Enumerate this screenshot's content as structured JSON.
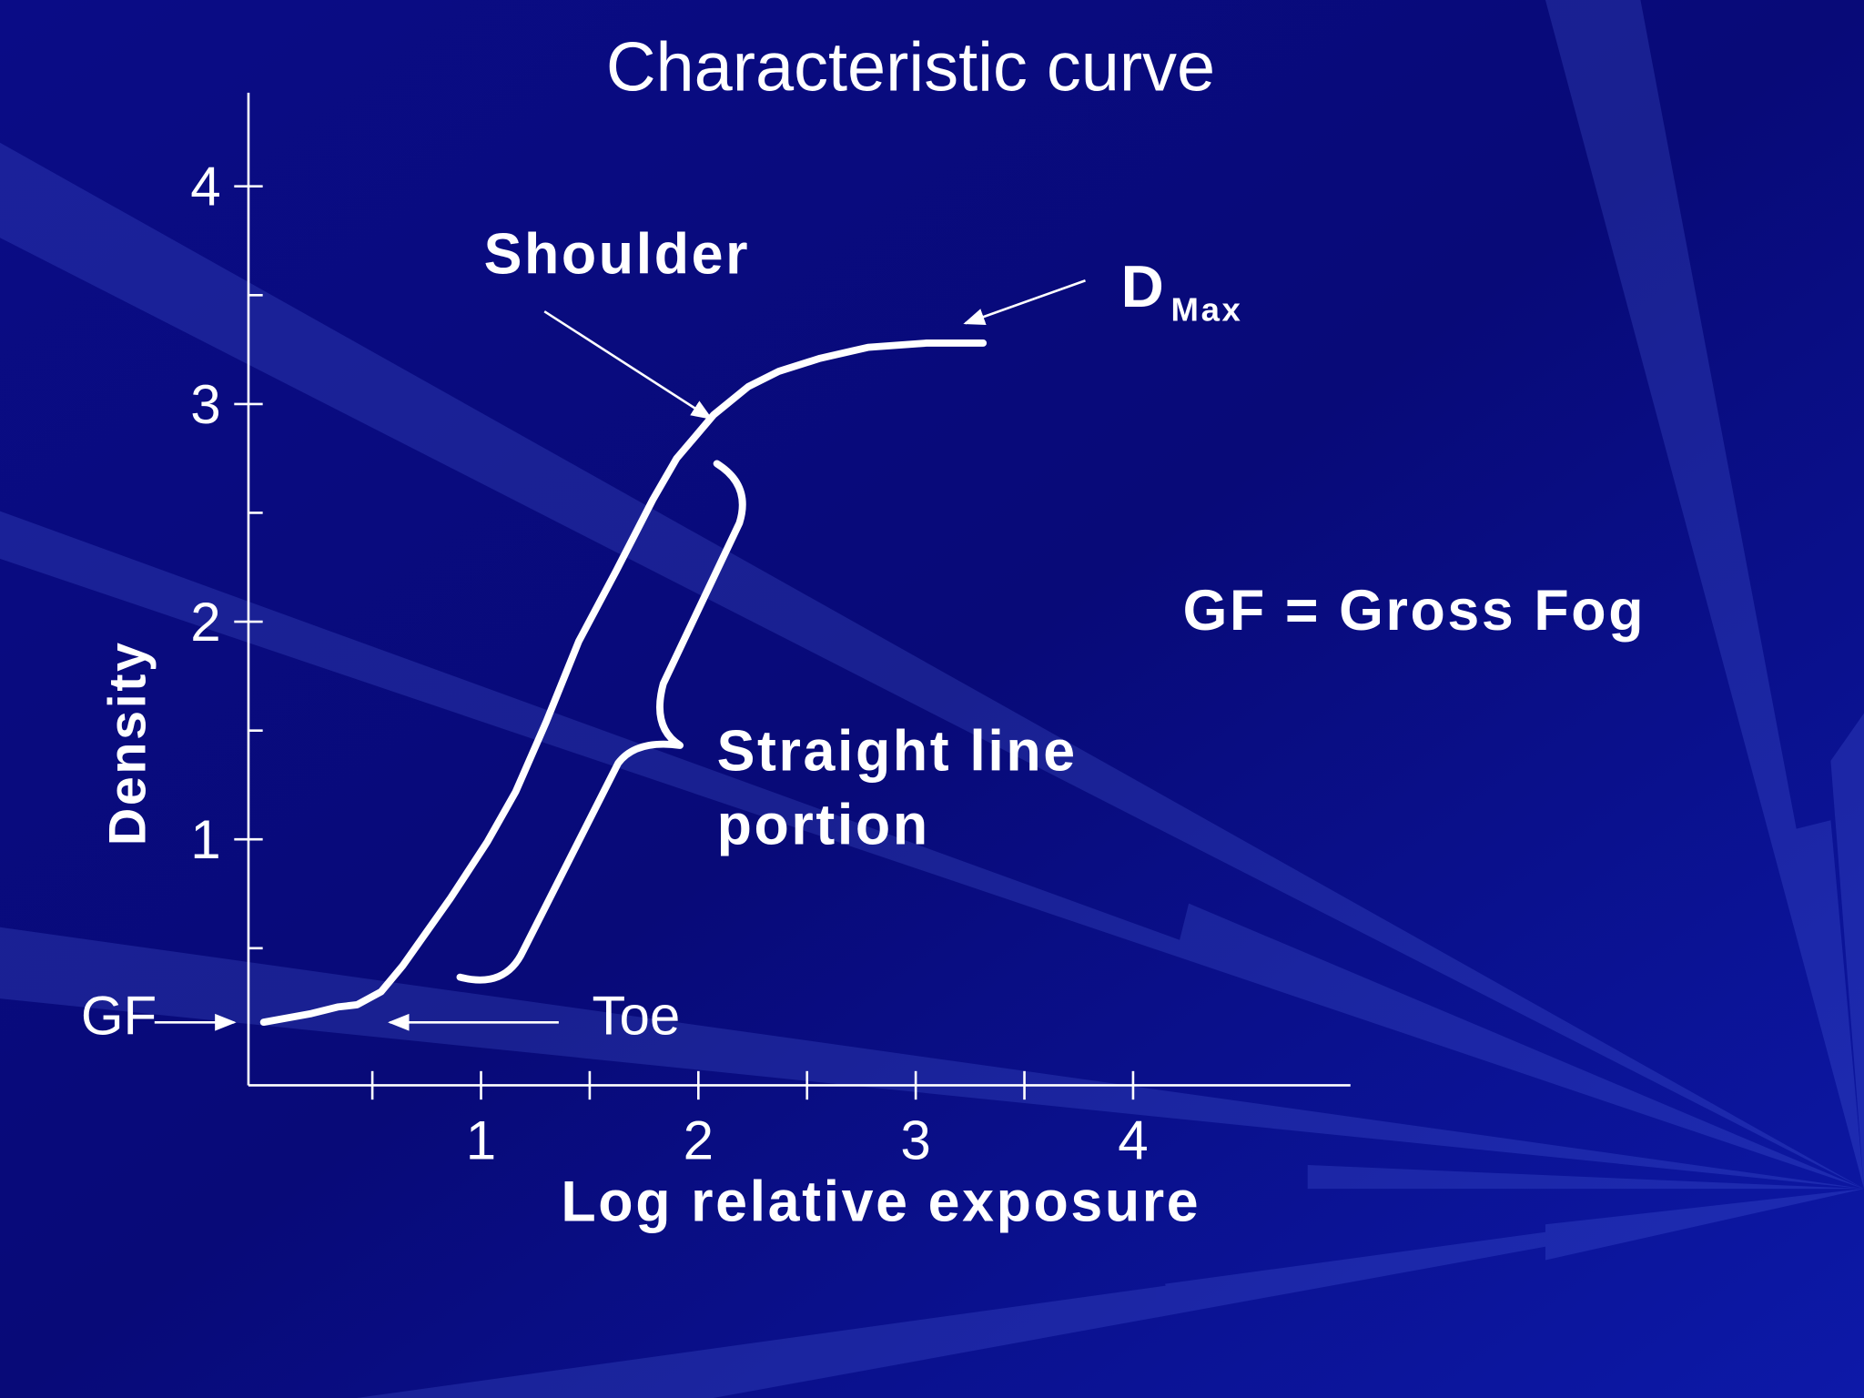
{
  "chart_data": {
    "type": "line",
    "title": "Characteristic curve",
    "x_label": "Log relative exposure",
    "y_label": "Density",
    "x": [
      0,
      0.22,
      0.34,
      0.43,
      0.54,
      0.64,
      0.86,
      1.03,
      1.16,
      1.3,
      1.45,
      1.62,
      1.79,
      1.9,
      2.07,
      2.23,
      2.37,
      2.56,
      2.78,
      3.05,
      3.31
    ],
    "values": [
      0.16,
      0.2,
      0.23,
      0.24,
      0.3,
      0.42,
      0.73,
      0.99,
      1.22,
      1.54,
      1.91,
      2.23,
      2.56,
      2.75,
      2.95,
      3.08,
      3.15,
      3.21,
      3.26,
      3.28,
      3.28
    ],
    "color": "#ffffff",
    "xlim": [
      -0.07,
      5
    ],
    "ylim": [
      -0.13,
      4.43
    ],
    "xticks": [
      1,
      2,
      3,
      4
    ],
    "xminorticks": [
      0.5,
      1.5,
      2.5,
      3.5
    ],
    "yticks": [
      1,
      2,
      3,
      4
    ],
    "yminorticks": [
      0.5,
      1.5,
      2.5,
      3.5
    ],
    "annotations": {
      "shoulder": "Shoulder",
      "dmax": "D",
      "dmax_sub": "Max",
      "gross_fog": "GF = Gross Fog",
      "straight_line": [
        "Straight line",
        "portion"
      ],
      "toe": "Toe",
      "gf": "GF"
    }
  }
}
